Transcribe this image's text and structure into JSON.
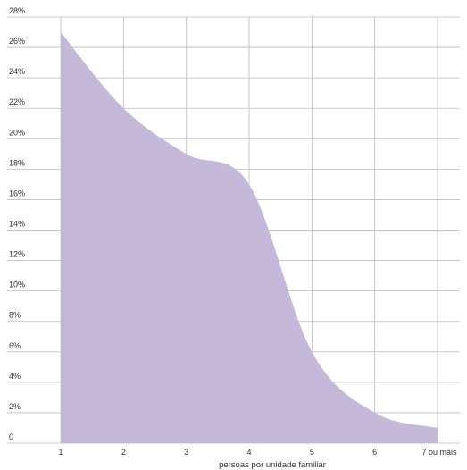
{
  "chart_data": {
    "type": "area",
    "title": "",
    "xlabel": "persoas por unidade familiar",
    "ylabel": "",
    "categories": [
      "1",
      "2",
      "3",
      "4",
      "5",
      "6",
      "7 ou máis"
    ],
    "y_tick_labels": [
      "0",
      "2%",
      "4%",
      "6%",
      "8%",
      "10%",
      "12%",
      "14%",
      "16%",
      "18%",
      "20%",
      "22%",
      "24%",
      "26%",
      "28%"
    ],
    "ylim": [
      0,
      28
    ],
    "y_unit": "%",
    "grid": true,
    "legend": "none",
    "series": [
      {
        "values": [
          27,
          22,
          19,
          17,
          6,
          2,
          1
        ]
      }
    ],
    "colors": {
      "area_fill": "#c5b9d9",
      "grid": "#bdbdbd",
      "text": "#333333"
    }
  }
}
